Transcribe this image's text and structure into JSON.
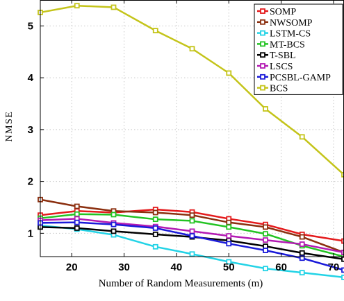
{
  "chart_data": {
    "type": "line",
    "xlabel": "Number of Random Measurements (m)",
    "ylabel": "NMSE",
    "xlim": [
      14,
      72
    ],
    "ylim": [
      0.55,
      5.5
    ],
    "x_ticks": [
      20,
      30,
      40,
      50,
      60,
      70
    ],
    "y_ticks": [
      1,
      2,
      3,
      4,
      5
    ],
    "grid": true,
    "legend_position": "top-right",
    "x": [
      14,
      21,
      28,
      36,
      43,
      50,
      57,
      64,
      72
    ],
    "series": [
      {
        "name": "SOMP",
        "color": "#e41a1c",
        "values": [
          1.35,
          1.43,
          1.4,
          1.46,
          1.41,
          1.28,
          1.17,
          0.98,
          0.85
        ]
      },
      {
        "name": "NWSOMP",
        "color": "#8b2f0f",
        "values": [
          1.65,
          1.52,
          1.43,
          1.4,
          1.35,
          1.21,
          1.12,
          0.93,
          0.63
        ]
      },
      {
        "name": "LSTM-CS",
        "color": "#22d3e6",
        "values": [
          1.15,
          1.08,
          0.97,
          0.74,
          0.6,
          0.45,
          0.32,
          0.24,
          0.15
        ]
      },
      {
        "name": "MT-BCS",
        "color": "#22c322",
        "values": [
          1.29,
          1.37,
          1.36,
          1.27,
          1.24,
          1.12,
          0.99,
          0.76,
          0.55
        ]
      },
      {
        "name": "T-SBL",
        "color": "#000000",
        "values": [
          1.12,
          1.1,
          1.04,
          0.98,
          0.93,
          0.86,
          0.75,
          0.62,
          0.5
        ]
      },
      {
        "name": "LSCS",
        "color": "#b31ab3",
        "values": [
          1.25,
          1.28,
          1.2,
          1.13,
          1.04,
          0.95,
          0.87,
          0.79,
          0.63
        ]
      },
      {
        "name": "PCSBL-GAMP",
        "color": "#1a1ad9",
        "values": [
          1.2,
          1.21,
          1.17,
          1.1,
          0.95,
          0.8,
          0.67,
          0.52,
          0.29
        ]
      },
      {
        "name": "BCS",
        "color": "#c4c41a",
        "values": [
          5.26,
          5.39,
          5.36,
          4.91,
          4.56,
          4.09,
          3.4,
          2.86,
          2.13
        ]
      }
    ]
  }
}
